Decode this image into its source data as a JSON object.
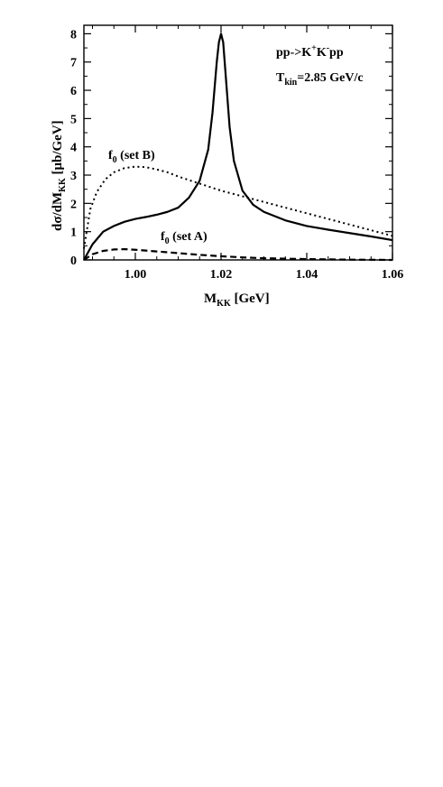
{
  "chart_data": {
    "type": "line",
    "xlabel": {
      "main": "M",
      "sub": "KK",
      "rest": " [GeV]"
    },
    "ylabel": {
      "main": "dσ/dM",
      "sub": "KK",
      "rest": "  [μb/GeV]"
    },
    "xlim": [
      0.988,
      1.06
    ],
    "ylim": [
      0,
      8.3
    ],
    "xticks": [
      1.0,
      1.02,
      1.04,
      1.06
    ],
    "xtick_labels": [
      "1.00",
      "1.02",
      "1.04",
      "1.06"
    ],
    "yticks": [
      0,
      1,
      2,
      3,
      4,
      5,
      6,
      7,
      8
    ],
    "ytick_labels": [
      "0",
      "1",
      "2",
      "3",
      "4",
      "5",
      "6",
      "7",
      "8"
    ],
    "grid": false,
    "annotations": {
      "reaction": "pp->K+K-pp",
      "reaction_parts": {
        "a": "pp->K",
        "sup1": "+",
        "b": "K",
        "sup2": "-",
        "c": "pp"
      },
      "tkin": {
        "main": "T",
        "sub": "kin",
        "rest": "=2.85 GeV/c"
      },
      "setB": {
        "main": "f",
        "sub": "0",
        "rest": " (set B)"
      },
      "setA": {
        "main": "f",
        "sub": "0",
        "rest": " (set A)"
      }
    },
    "series": [
      {
        "style": "solid",
        "x": [
          0.988,
          0.99,
          0.9925,
          0.995,
          0.9975,
          1.0,
          1.0025,
          1.005,
          1.0075,
          1.01,
          1.0125,
          1.015,
          1.017,
          1.018,
          1.019,
          1.0195,
          1.02,
          1.0205,
          1.021,
          1.022,
          1.023,
          1.025,
          1.0275,
          1.03,
          1.035,
          1.04,
          1.045,
          1.05,
          1.055,
          1.06
        ],
        "y": [
          0.0,
          0.55,
          1.0,
          1.2,
          1.35,
          1.45,
          1.52,
          1.6,
          1.7,
          1.85,
          2.2,
          2.8,
          3.9,
          5.2,
          7.0,
          7.7,
          8.0,
          7.7,
          6.7,
          4.7,
          3.5,
          2.45,
          1.95,
          1.7,
          1.4,
          1.2,
          1.07,
          0.95,
          0.83,
          0.7
        ]
      },
      {
        "style": "dotted",
        "x": [
          0.988,
          0.9895,
          0.991,
          0.993,
          0.995,
          0.9975,
          1.0,
          1.0025,
          1.005,
          1.0075,
          1.01,
          1.015,
          1.02,
          1.025,
          1.03,
          1.035,
          1.04,
          1.045,
          1.05,
          1.055,
          1.06
        ],
        "y": [
          0.4,
          1.8,
          2.4,
          2.85,
          3.1,
          3.25,
          3.3,
          3.28,
          3.2,
          3.1,
          2.95,
          2.7,
          2.45,
          2.25,
          2.05,
          1.85,
          1.65,
          1.45,
          1.25,
          1.05,
          0.85
        ]
      },
      {
        "style": "dashed",
        "x": [
          0.988,
          0.99,
          0.9925,
          0.995,
          0.9975,
          1.0,
          1.005,
          1.01,
          1.015,
          1.02,
          1.025,
          1.03,
          1.04,
          1.05,
          1.06
        ],
        "y": [
          0.0,
          0.2,
          0.32,
          0.37,
          0.38,
          0.36,
          0.3,
          0.24,
          0.18,
          0.13,
          0.09,
          0.06,
          0.03,
          0.01,
          0.0
        ]
      }
    ]
  }
}
